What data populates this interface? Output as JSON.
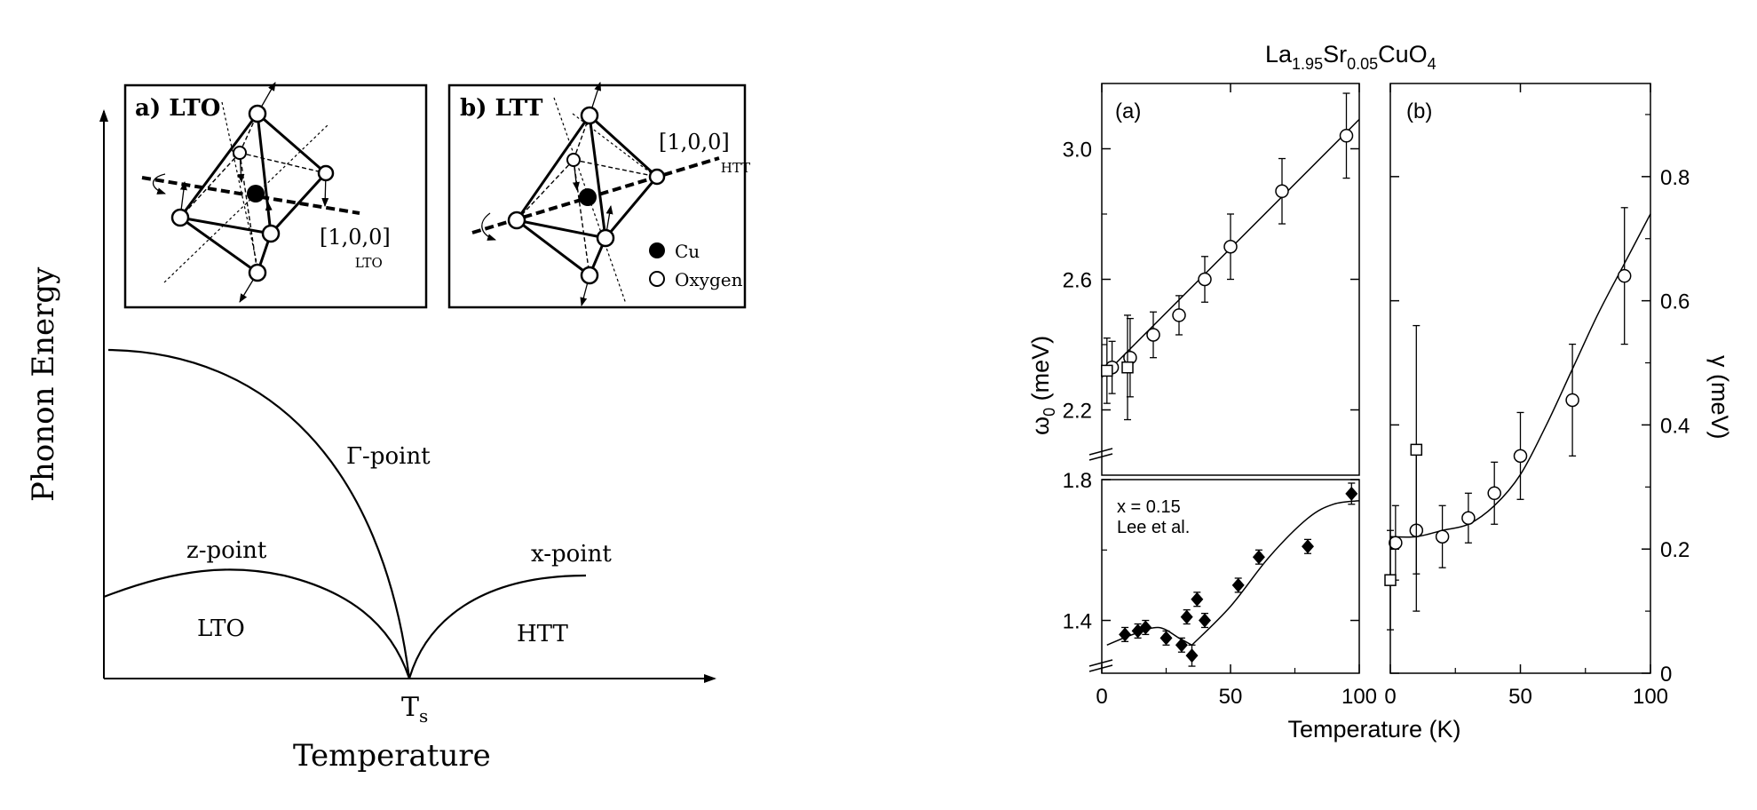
{
  "chart_data": [
    {
      "type": "diagram",
      "xlabel": "Temperature",
      "ylabel": "Phonon Energy",
      "ts_label": "T",
      "ts_sub": "s",
      "curve_labels": {
        "gamma": "Γ-point",
        "z": "z-point",
        "x": "x-point"
      },
      "phase_labels": {
        "lto": "LTO",
        "htt": "HTT"
      },
      "inset_a": {
        "title": "a) LTO",
        "axis_label": "[1,0,0]",
        "axis_sub": "LTO"
      },
      "inset_b": {
        "title": "b) LTT",
        "axis_label": "[1,0,0]",
        "axis_sub": "HTT",
        "legend": [
          "Cu",
          "Oxygen"
        ]
      }
    },
    {
      "type": "scatter",
      "title": "La",
      "title_parts": [
        "La",
        "1.95",
        "Sr",
        "0.05",
        "CuO",
        "4"
      ],
      "xlabel": "Temperature (K)",
      "panels": [
        {
          "label": "(a)",
          "ylabel": "ω",
          "ylabel_sub": "0",
          "ylabel_unit": " (meV)",
          "xlim": [
            0,
            100
          ],
          "top": {
            "ylim": [
              2.0,
              3.2
            ],
            "yticks": [
              "2.2",
              "2.6",
              "3.0"
            ],
            "yticks_values": [
              2.2,
              2.6,
              3.0
            ],
            "circles": [
              {
                "x": 4,
                "y": 2.33,
                "err": 0.08
              },
              {
                "x": 11,
                "y": 2.36,
                "err": 0.12
              },
              {
                "x": 20,
                "y": 2.43,
                "err": 0.07
              },
              {
                "x": 30,
                "y": 2.49,
                "err": 0.06
              },
              {
                "x": 40,
                "y": 2.6,
                "err": 0.07
              },
              {
                "x": 50,
                "y": 2.7,
                "err": 0.1
              },
              {
                "x": 70,
                "y": 2.87,
                "err": 0.1
              },
              {
                "x": 95,
                "y": 3.04,
                "err": 0.13
              }
            ],
            "squares": [
              {
                "x": 2,
                "y": 2.32,
                "err": 0.1
              },
              {
                "x": 10,
                "y": 2.33,
                "err": 0.16
              }
            ],
            "fit": [
              [
                0,
                2.3
              ],
              [
                100,
                3.09
              ]
            ]
          },
          "bottom": {
            "ylim": [
              1.25,
              1.8
            ],
            "yticks": [
              "1.4",
              "1.8"
            ],
            "yticks_values": [
              1.4,
              1.8
            ],
            "annotation": [
              "x = 0.15",
              "Lee et al."
            ],
            "diamonds": [
              {
                "x": 9,
                "y": 1.36,
                "err": 0.02
              },
              {
                "x": 14,
                "y": 1.37,
                "err": 0.02
              },
              {
                "x": 17,
                "y": 1.38,
                "err": 0.02
              },
              {
                "x": 25,
                "y": 1.35,
                "err": 0.02
              },
              {
                "x": 31,
                "y": 1.33,
                "err": 0.02
              },
              {
                "x": 33,
                "y": 1.41,
                "err": 0.02
              },
              {
                "x": 35,
                "y": 1.3,
                "err": 0.03
              },
              {
                "x": 37,
                "y": 1.46,
                "err": 0.02
              },
              {
                "x": 40,
                "y": 1.4,
                "err": 0.02
              },
              {
                "x": 53,
                "y": 1.5,
                "err": 0.02
              },
              {
                "x": 61,
                "y": 1.58,
                "err": 0.02
              },
              {
                "x": 80,
                "y": 1.61,
                "err": 0.02
              },
              {
                "x": 97,
                "y": 1.76,
                "err": 0.03
              }
            ],
            "fit_low": [
              [
                2,
                1.33
              ],
              [
                12,
                1.36
              ],
              [
                22,
                1.38
              ],
              [
                30,
                1.35
              ],
              [
                35,
                1.33
              ]
            ],
            "fit_high": [
              [
                35,
                1.33
              ],
              [
                50,
                1.44
              ],
              [
                65,
                1.58
              ],
              [
                80,
                1.69
              ],
              [
                90,
                1.73
              ],
              [
                100,
                1.74
              ]
            ]
          },
          "xticks": [
            "0",
            "50",
            "100"
          ]
        },
        {
          "label": "(b)",
          "ylabel": "γ",
          "ylabel_unit": " (meV)",
          "xlim": [
            0,
            100
          ],
          "ylim": [
            0,
            0.95
          ],
          "yticks": [
            "0",
            "0.2",
            "0.4",
            "0.6",
            "0.8"
          ],
          "yticks_values": [
            0,
            0.2,
            0.4,
            0.6,
            0.8
          ],
          "circles": [
            {
              "x": 2,
              "y": 0.21,
              "err": 0.06
            },
            {
              "x": 10,
              "y": 0.23,
              "err": 0.13
            },
            {
              "x": 20,
              "y": 0.22,
              "err": 0.05
            },
            {
              "x": 30,
              "y": 0.25,
              "err": 0.04
            },
            {
              "x": 40,
              "y": 0.29,
              "err": 0.05
            },
            {
              "x": 50,
              "y": 0.35,
              "err": 0.07
            },
            {
              "x": 70,
              "y": 0.44,
              "err": 0.09
            },
            {
              "x": 90,
              "y": 0.64,
              "err": 0.11
            }
          ],
          "squares": [
            {
              "x": 0,
              "y": 0.15,
              "err": 0.08
            },
            {
              "x": 10,
              "y": 0.36,
              "err": 0.2
            }
          ],
          "fit": [
            [
              0,
              0.22
            ],
            [
              10,
              0.22
            ],
            [
              20,
              0.23
            ],
            [
              30,
              0.24
            ],
            [
              40,
              0.27
            ],
            [
              50,
              0.32
            ],
            [
              60,
              0.4
            ],
            [
              70,
              0.49
            ],
            [
              80,
              0.58
            ],
            [
              90,
              0.66
            ],
            [
              100,
              0.74
            ]
          ],
          "xticks": [
            "0",
            "50",
            "100"
          ]
        }
      ]
    }
  ]
}
